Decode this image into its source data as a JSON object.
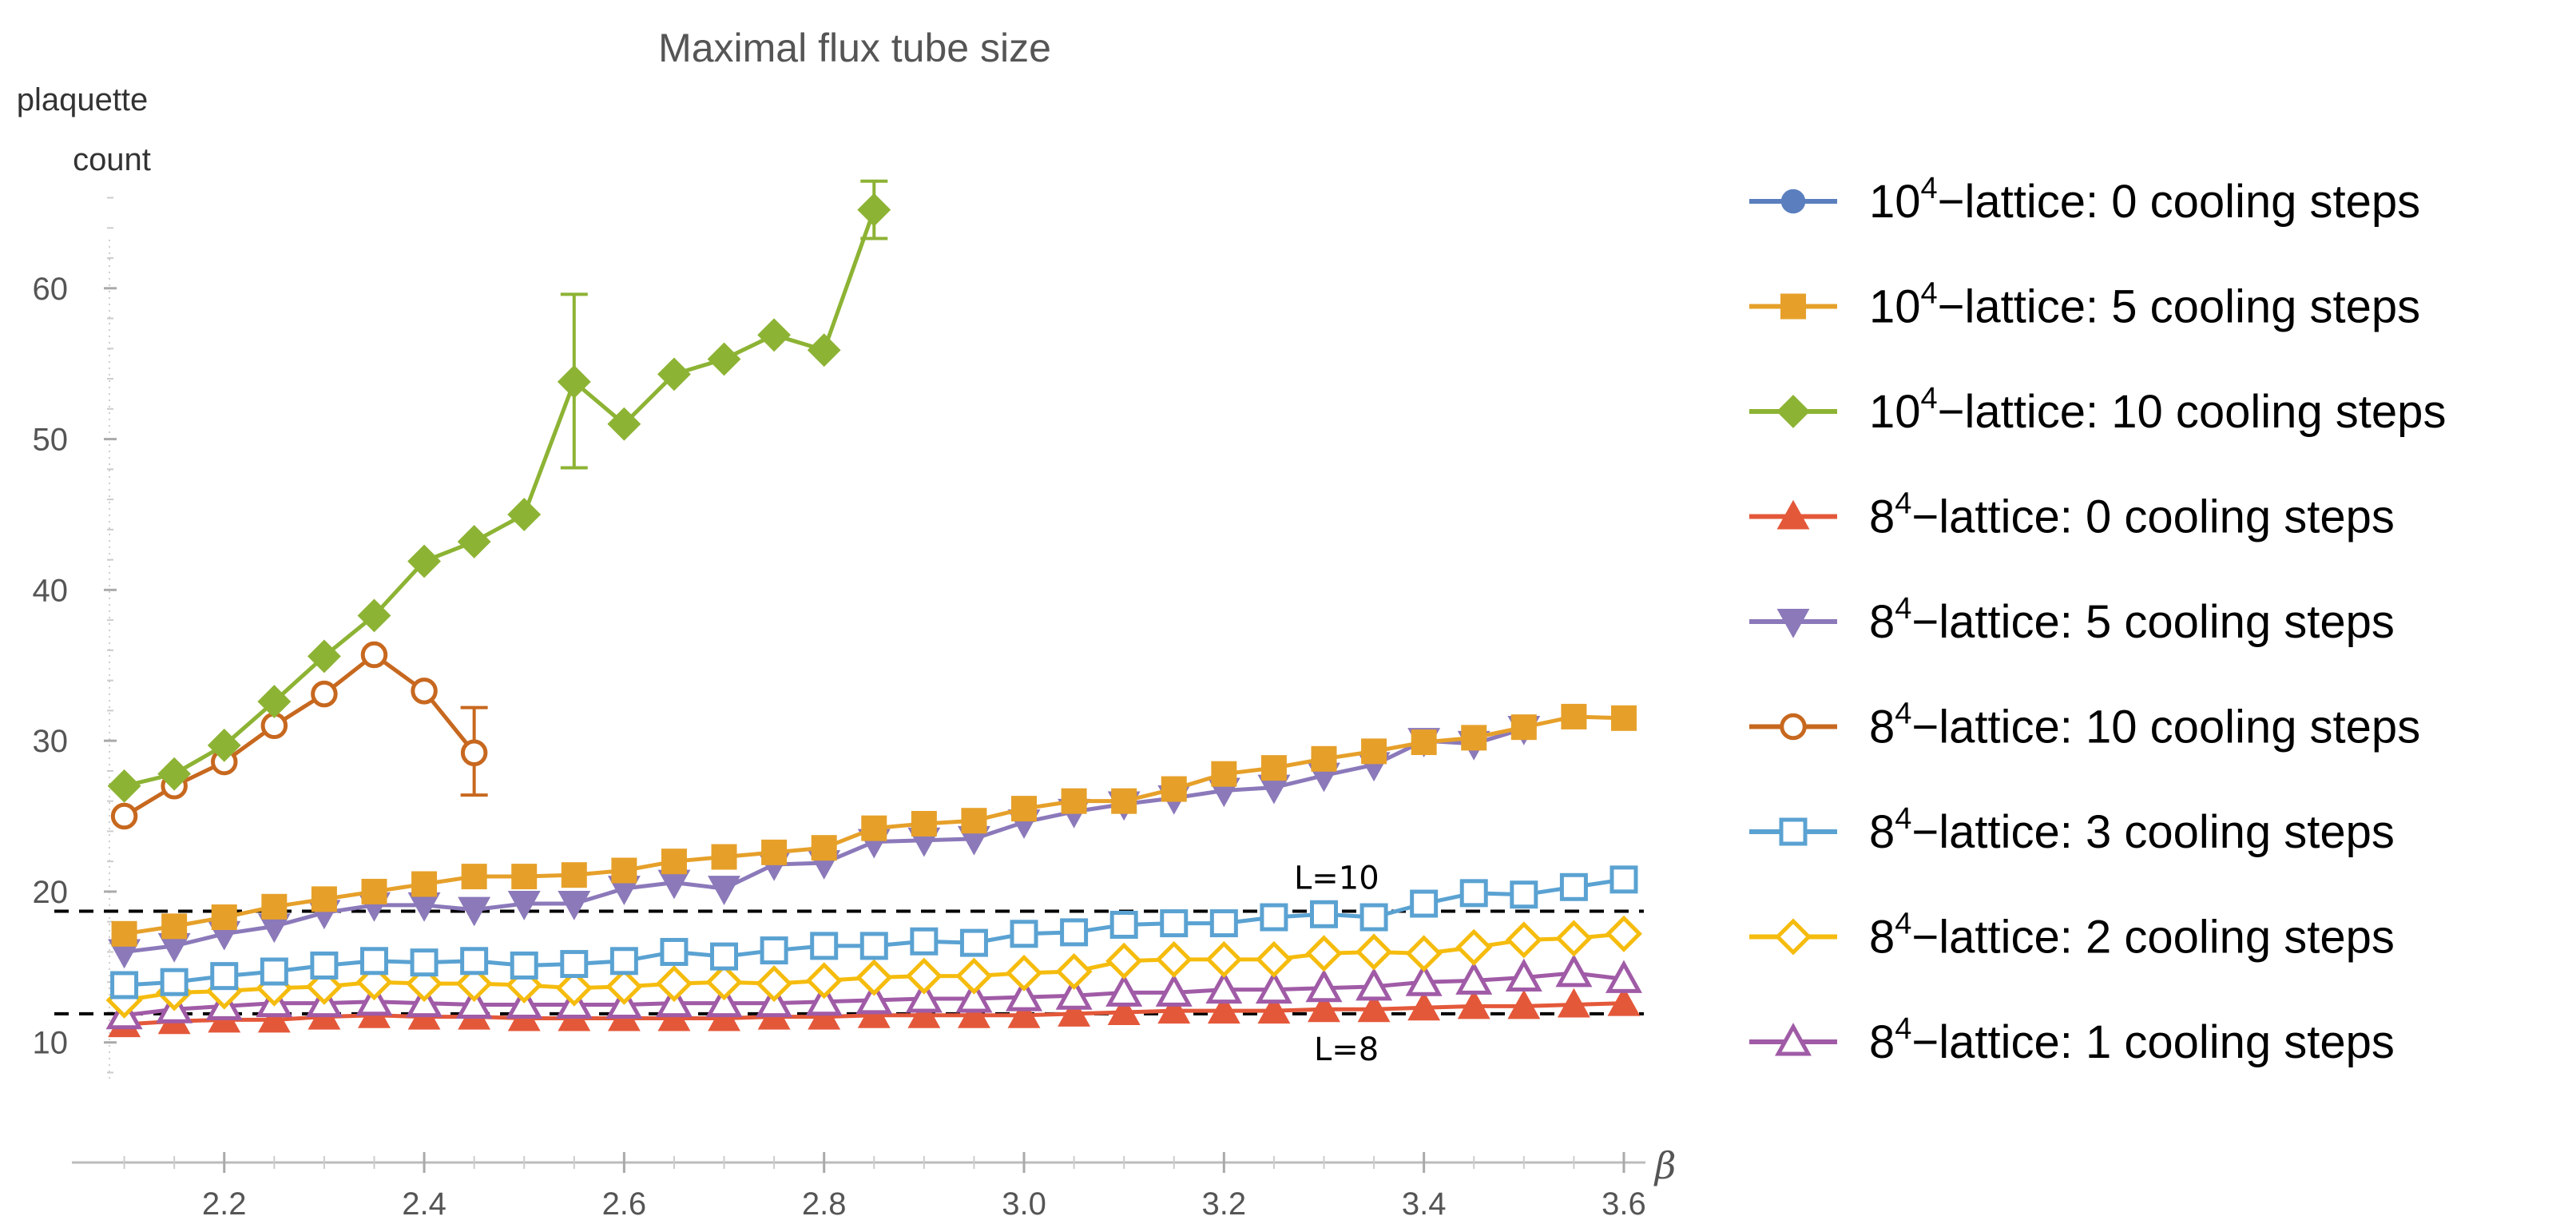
{
  "chart_data": {
    "type": "line",
    "title": "Maximal flux tube size",
    "ylabel_lines": [
      "plaquette",
      "count"
    ],
    "xlabel": "β",
    "xlim": [
      2.05,
      3.62
    ],
    "ylim": [
      4,
      70
    ],
    "xticks": [
      "2.2",
      "2.4",
      "2.6",
      "2.8",
      "3.0",
      "3.2",
      "3.4",
      "3.6"
    ],
    "yticks": [
      "10",
      "20",
      "30",
      "40",
      "50",
      "60"
    ],
    "reference_lines": [
      {
        "y": 18.7,
        "label": "L=10",
        "label_x": 3.27
      },
      {
        "y": 11.9,
        "label": "L=8",
        "label_x": 3.29
      }
    ],
    "series": [
      {
        "name_base": "10",
        "name_exp": "4",
        "name_rest": "−lattice: 0 cooling steps",
        "color": "#5B7FBE",
        "marker": "circle",
        "filled": true,
        "x": [],
        "y": []
      },
      {
        "name_base": "10",
        "name_exp": "4",
        "name_rest": "−lattice: 5 cooling steps",
        "color": "#E6A02A",
        "marker": "square",
        "filled": true,
        "x": [
          2.1,
          2.15,
          2.2,
          2.25,
          2.3,
          2.35,
          2.4,
          2.45,
          2.5,
          2.55,
          2.6,
          2.65,
          2.7,
          2.75,
          2.8,
          2.85,
          2.9,
          2.95,
          3.0,
          3.05,
          3.1,
          3.15,
          3.2,
          3.25,
          3.3,
          3.35,
          3.4,
          3.45,
          3.5,
          3.55,
          3.6
        ],
        "y": [
          17.2,
          17.7,
          18.3,
          19.0,
          19.5,
          20.0,
          20.5,
          21.0,
          21.0,
          21.1,
          21.4,
          22.0,
          22.3,
          22.6,
          22.9,
          24.2,
          24.5,
          24.7,
          25.5,
          26.0,
          26.0,
          26.8,
          27.8,
          28.2,
          28.8,
          29.3,
          29.9,
          30.2,
          30.9,
          31.6,
          31.5
        ],
        "errors": []
      },
      {
        "name_base": "10",
        "name_exp": "4",
        "name_rest": "−lattice: 10 cooling steps",
        "color": "#8DB334",
        "marker": "diamond",
        "filled": true,
        "x": [
          2.1,
          2.15,
          2.2,
          2.25,
          2.3,
          2.35,
          2.4,
          2.45,
          2.5,
          2.55,
          2.6,
          2.65,
          2.7,
          2.75,
          2.8,
          2.85
        ],
        "y": [
          27.0,
          27.8,
          29.7,
          32.6,
          35.6,
          38.3,
          41.9,
          43.2,
          45.0,
          53.8,
          51.0,
          54.3,
          55.3,
          56.9,
          55.9,
          65.2
        ],
        "errors": [
          {
            "x": 2.55,
            "low": 48.1,
            "high": 59.6
          },
          {
            "x": 2.85,
            "low": 63.3,
            "high": 67.1
          }
        ]
      },
      {
        "name_base": "8",
        "name_exp": "4",
        "name_rest": "−lattice: 0 cooling steps",
        "color": "#E4583A",
        "marker": "triangle",
        "filled": true,
        "x": [
          2.1,
          2.15,
          2.2,
          2.25,
          2.3,
          2.35,
          2.4,
          2.45,
          2.5,
          2.55,
          2.6,
          2.65,
          2.7,
          2.75,
          2.8,
          2.85,
          2.9,
          2.95,
          3.0,
          3.05,
          3.1,
          3.15,
          3.2,
          3.25,
          3.3,
          3.35,
          3.4,
          3.45,
          3.5,
          3.55,
          3.6
        ],
        "y": [
          11.2,
          11.4,
          11.5,
          11.5,
          11.7,
          11.8,
          11.7,
          11.7,
          11.6,
          11.6,
          11.6,
          11.6,
          11.6,
          11.7,
          11.7,
          11.8,
          11.8,
          11.8,
          11.8,
          11.9,
          12.0,
          12.1,
          12.1,
          12.1,
          12.2,
          12.2,
          12.3,
          12.4,
          12.4,
          12.5,
          12.6
        ],
        "errors": []
      },
      {
        "name_base": "8",
        "name_exp": "4",
        "name_rest": "−lattice: 5 cooling steps",
        "color": "#8B79BA",
        "marker": "triangle-down",
        "filled": true,
        "x": [
          2.1,
          2.15,
          2.2,
          2.25,
          2.3,
          2.35,
          2.4,
          2.45,
          2.5,
          2.55,
          2.6,
          2.65,
          2.7,
          2.75,
          2.8,
          2.85,
          2.9,
          2.95,
          3.0,
          3.05,
          3.1,
          3.15,
          3.2,
          3.25,
          3.3,
          3.35,
          3.4,
          3.45,
          3.5,
          3.55,
          3.6
        ],
        "y": [
          16.0,
          16.4,
          17.2,
          17.7,
          18.6,
          19.1,
          19.1,
          18.8,
          19.2,
          19.2,
          20.2,
          20.6,
          20.2,
          21.8,
          21.9,
          23.3,
          23.4,
          23.5,
          24.6,
          25.3,
          25.8,
          26.2,
          26.7,
          26.9,
          27.7,
          28.4,
          30.0,
          29.8,
          30.8,
          null,
          null
        ],
        "errors": []
      },
      {
        "name_base": "8",
        "name_exp": "4",
        "name_rest": "−lattice: 10 cooling steps",
        "color": "#C7681F",
        "marker": "circle",
        "filled": false,
        "x": [
          2.1,
          2.15,
          2.2,
          2.25,
          2.3,
          2.35,
          2.4,
          2.45
        ],
        "y": [
          25.0,
          27.0,
          28.6,
          31.0,
          33.1,
          35.7,
          33.3,
          29.2
        ],
        "errors": [
          {
            "x": 2.45,
            "low": 26.4,
            "high": 32.2
          }
        ]
      },
      {
        "name_base": "8",
        "name_exp": "4",
        "name_rest": "−lattice: 3 cooling steps",
        "color": "#5AA2D2",
        "marker": "square",
        "filled": false,
        "x": [
          2.1,
          2.15,
          2.2,
          2.25,
          2.3,
          2.35,
          2.4,
          2.45,
          2.5,
          2.55,
          2.6,
          2.65,
          2.7,
          2.75,
          2.8,
          2.85,
          2.9,
          2.95,
          3.0,
          3.05,
          3.1,
          3.15,
          3.2,
          3.25,
          3.3,
          3.35,
          3.4,
          3.45,
          3.5,
          3.55,
          3.6
        ],
        "y": [
          13.8,
          14.0,
          14.4,
          14.7,
          15.1,
          15.4,
          15.3,
          15.4,
          15.1,
          15.2,
          15.4,
          16.0,
          15.7,
          16.1,
          16.4,
          16.4,
          16.7,
          16.6,
          17.2,
          17.3,
          17.8,
          17.9,
          17.9,
          18.3,
          18.5,
          18.3,
          19.2,
          19.9,
          19.8,
          20.3,
          20.8
        ],
        "errors": []
      },
      {
        "name_base": "8",
        "name_exp": "4",
        "name_rest": "−lattice: 2 cooling steps",
        "color": "#F5BC0E",
        "marker": "diamond",
        "filled": false,
        "x": [
          2.1,
          2.15,
          2.2,
          2.25,
          2.3,
          2.35,
          2.4,
          2.45,
          2.5,
          2.55,
          2.6,
          2.65,
          2.7,
          2.75,
          2.8,
          2.85,
          2.9,
          2.95,
          3.0,
          3.05,
          3.1,
          3.15,
          3.2,
          3.25,
          3.3,
          3.35,
          3.4,
          3.45,
          3.5,
          3.55,
          3.6
        ],
        "y": [
          12.8,
          13.3,
          13.4,
          13.6,
          13.7,
          14.0,
          13.9,
          13.9,
          13.8,
          13.6,
          13.7,
          13.9,
          14.0,
          13.9,
          14.1,
          14.3,
          14.4,
          14.4,
          14.6,
          14.7,
          15.4,
          15.5,
          15.5,
          15.5,
          15.9,
          16.0,
          15.9,
          16.3,
          16.8,
          16.9,
          17.2
        ],
        "errors": []
      },
      {
        "name_base": "8",
        "name_exp": "4",
        "name_rest": "−lattice: 1 cooling steps",
        "color": "#A05BA6",
        "marker": "triangle",
        "filled": false,
        "x": [
          2.1,
          2.15,
          2.2,
          2.25,
          2.3,
          2.35,
          2.4,
          2.45,
          2.5,
          2.55,
          2.6,
          2.65,
          2.7,
          2.75,
          2.8,
          2.85,
          2.9,
          2.95,
          3.0,
          3.05,
          3.1,
          3.15,
          3.2,
          3.25,
          3.3,
          3.35,
          3.4,
          3.45,
          3.5,
          3.55,
          3.6
        ],
        "y": [
          11.8,
          12.2,
          12.4,
          12.6,
          12.6,
          12.7,
          12.6,
          12.5,
          12.5,
          12.5,
          12.5,
          12.6,
          12.6,
          12.6,
          12.7,
          12.8,
          12.9,
          12.9,
          13.0,
          13.1,
          13.3,
          13.3,
          13.5,
          13.5,
          13.6,
          13.7,
          14.0,
          14.1,
          14.3,
          14.6,
          14.2
        ],
        "errors": []
      }
    ]
  }
}
